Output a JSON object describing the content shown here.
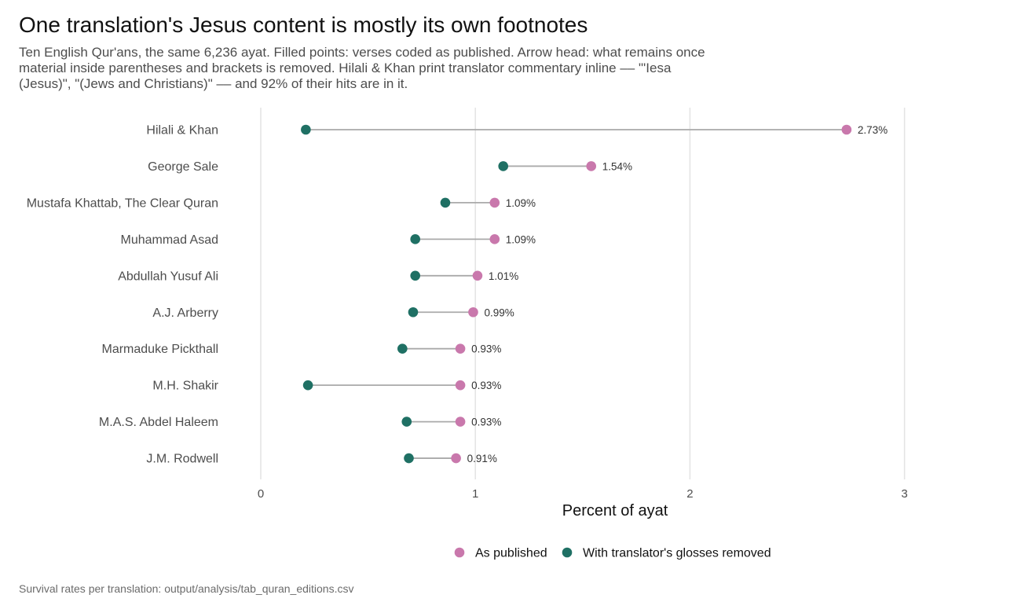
{
  "title": "One translation's Jesus content is mostly its own footnotes",
  "subtitle": "Ten English Qur'ans, the same 6,236 ayat. Filled points: verses coded as published. Arrow head: what remains once material inside parentheses and brackets is removed. Hilali & Khan print translator commentary inline –– \"'Iesa (Jesus)\", \"(Jews and Christians)\" –– and 92% of their hits are in it.",
  "caption": "Survival rates per translation: output/analysis/tab_quran_editions.csv",
  "colors": {
    "published": "#c978ac",
    "removed": "#1f7064",
    "segment": "#aaaaaa",
    "grid": "#e3e3e3"
  },
  "chart_data": {
    "type": "dumbbell",
    "xlabel": "Percent of ayat",
    "ylabel": "",
    "xlim": [
      0,
      3
    ],
    "xticks": [
      0,
      1,
      2,
      3
    ],
    "grid": "vertical major",
    "legend_position": "bottom",
    "categories": [
      "Hilali & Khan",
      "George Sale",
      "Mustafa Khattab, The Clear Quran",
      "Muhammad Asad",
      "Abdullah Yusuf Ali",
      "A.J. Arberry",
      "Marmaduke Pickthall",
      "M.H. Shakir",
      "M.A.S. Abdel Haleem",
      "J.M. Rodwell"
    ],
    "series": [
      {
        "name": "As published",
        "values": [
          2.73,
          1.54,
          1.09,
          1.09,
          1.01,
          0.99,
          0.93,
          0.93,
          0.93,
          0.91
        ]
      },
      {
        "name": "With translator's glosses removed",
        "values": [
          0.21,
          1.13,
          0.86,
          0.72,
          0.72,
          0.71,
          0.66,
          0.22,
          0.68,
          0.69
        ]
      }
    ],
    "data_labels": [
      "2.73%",
      "1.54%",
      "1.09%",
      "1.09%",
      "1.01%",
      "0.99%",
      "0.93%",
      "0.93%",
      "0.93%",
      "0.91%"
    ]
  }
}
